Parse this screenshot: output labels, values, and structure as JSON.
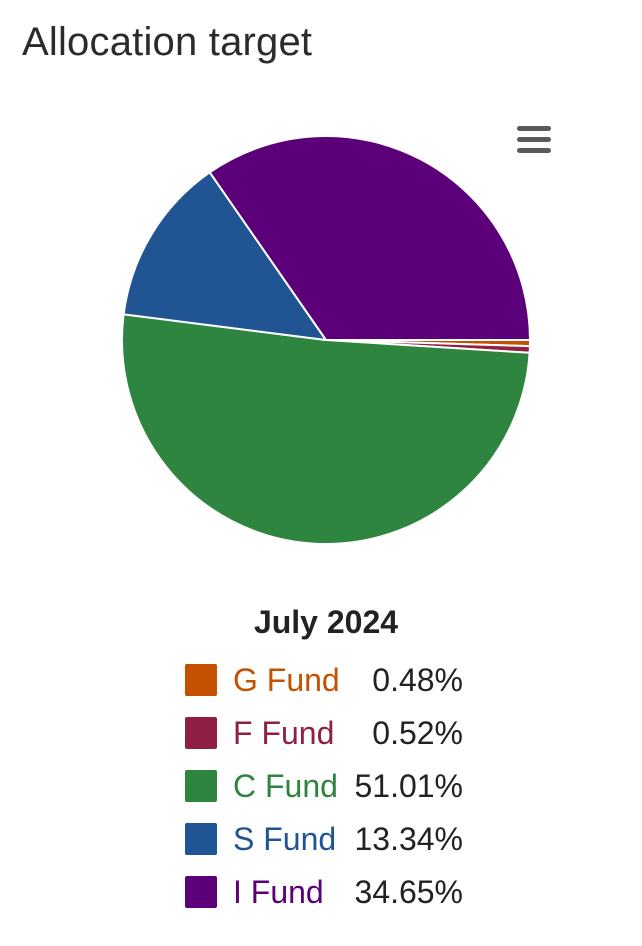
{
  "page": {
    "title": "Allocation target",
    "menu_icon": "hamburger-menu-icon"
  },
  "legend": {
    "title": "July 2024"
  },
  "chart_data": {
    "type": "pie",
    "title": "",
    "series_name": "July 2024",
    "slices": [
      {
        "label": "G Fund",
        "value": 0.48,
        "display": "0.48%",
        "color": "#c45100"
      },
      {
        "label": "F Fund",
        "value": 0.52,
        "display": "0.52%",
        "color": "#8f2043"
      },
      {
        "label": "C Fund",
        "value": 51.01,
        "display": "51.01%",
        "color": "#2e8540"
      },
      {
        "label": "S Fund",
        "value": 13.34,
        "display": "13.34%",
        "color": "#205493"
      },
      {
        "label": "I Fund",
        "value": 34.65,
        "display": "34.65%",
        "color": "#5b0078"
      }
    ],
    "start_angle_deg": 90,
    "direction": "clockwise",
    "legend_position": "bottom"
  }
}
